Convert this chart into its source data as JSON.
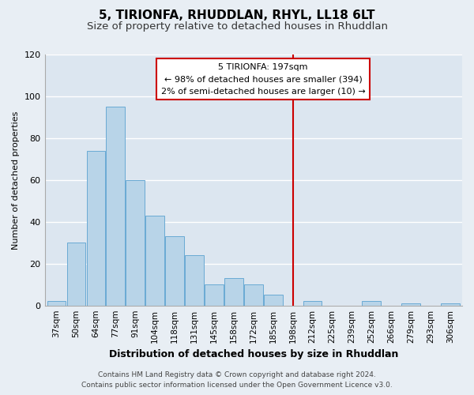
{
  "title": "5, TIRIONFA, RHUDDLAN, RHYL, LL18 6LT",
  "subtitle": "Size of property relative to detached houses in Rhuddlan",
  "xlabel": "Distribution of detached houses by size in Rhuddlan",
  "ylabel": "Number of detached properties",
  "footer_line1": "Contains HM Land Registry data © Crown copyright and database right 2024.",
  "footer_line2": "Contains public sector information licensed under the Open Government Licence v3.0.",
  "bar_labels": [
    "37sqm",
    "50sqm",
    "64sqm",
    "77sqm",
    "91sqm",
    "104sqm",
    "118sqm",
    "131sqm",
    "145sqm",
    "158sqm",
    "172sqm",
    "185sqm",
    "198sqm",
    "212sqm",
    "225sqm",
    "239sqm",
    "252sqm",
    "266sqm",
    "279sqm",
    "293sqm",
    "306sqm"
  ],
  "bar_heights": [
    2,
    30,
    74,
    95,
    60,
    43,
    33,
    24,
    10,
    13,
    10,
    5,
    0,
    2,
    0,
    0,
    2,
    0,
    1,
    0,
    1
  ],
  "bar_color": "#b8d4e8",
  "bar_edge_color": "#6aaad4",
  "vline_x": 12,
  "vline_color": "#cc0000",
  "annotation_title": "5 TIRIONFA: 197sqm",
  "annotation_line1": "← 98% of detached houses are smaller (394)",
  "annotation_line2": "2% of semi-detached houses are larger (10) →",
  "annotation_box_color": "#ffffff",
  "annotation_border_color": "#cc0000",
  "ylim": [
    0,
    120
  ],
  "yticks": [
    0,
    20,
    40,
    60,
    80,
    100,
    120
  ],
  "background_color": "#e8eef4",
  "plot_bg_color": "#dce6f0",
  "grid_color": "#ffffff",
  "title_fontsize": 11,
  "subtitle_fontsize": 9.5
}
